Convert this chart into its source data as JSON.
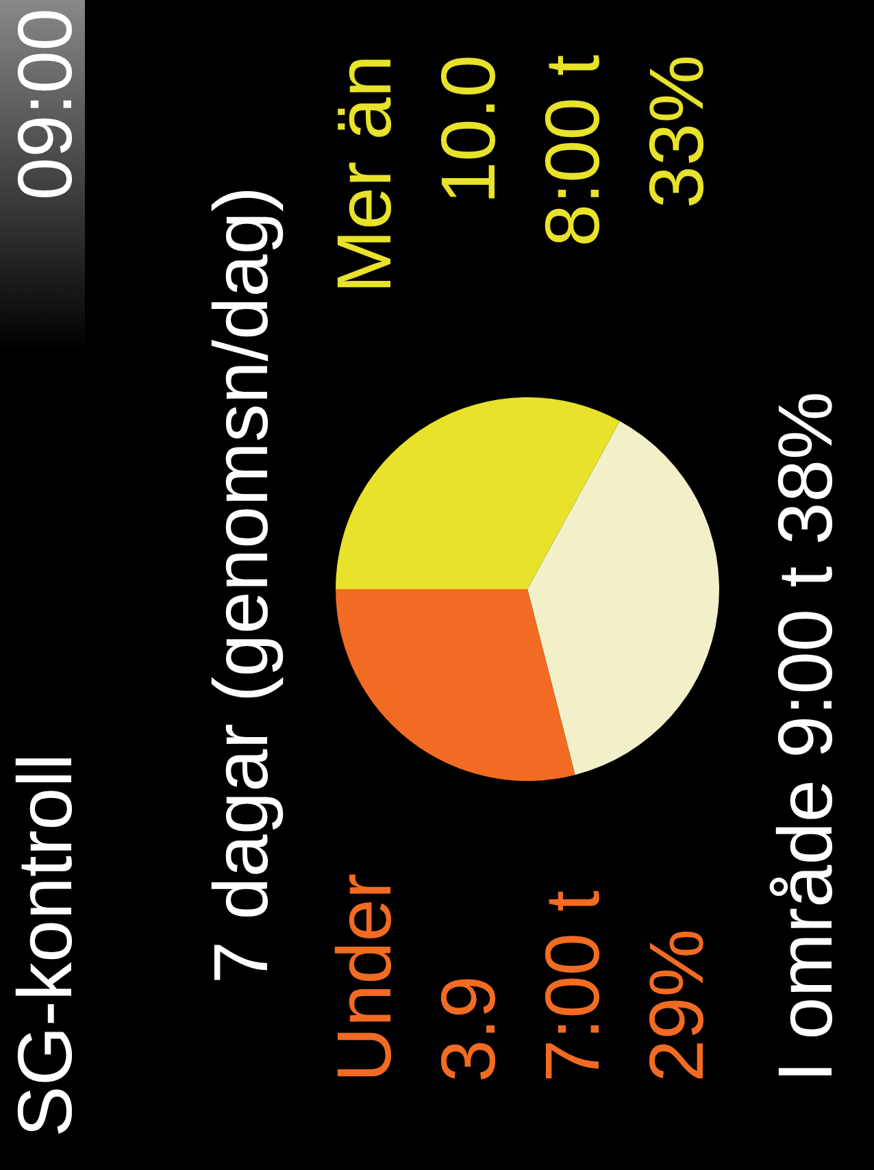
{
  "chart_data": {
    "type": "pie",
    "title": "SG-kontroll",
    "subtitle": "7 dagar (genomsn/dag)",
    "categories": [
      "Mer än",
      "I område",
      "Under"
    ],
    "values": [
      33,
      38,
      29
    ],
    "colors": [
      "#e8e22a",
      "#f2f0c8",
      "#f26b22"
    ],
    "value_labels": [
      "33%",
      "38%",
      "29%"
    ],
    "annotations": [
      "09:00",
      "3.9",
      "7:00 t",
      "10.0",
      "8:00 t",
      "9:00 t"
    ],
    "legend": false
  }
}
